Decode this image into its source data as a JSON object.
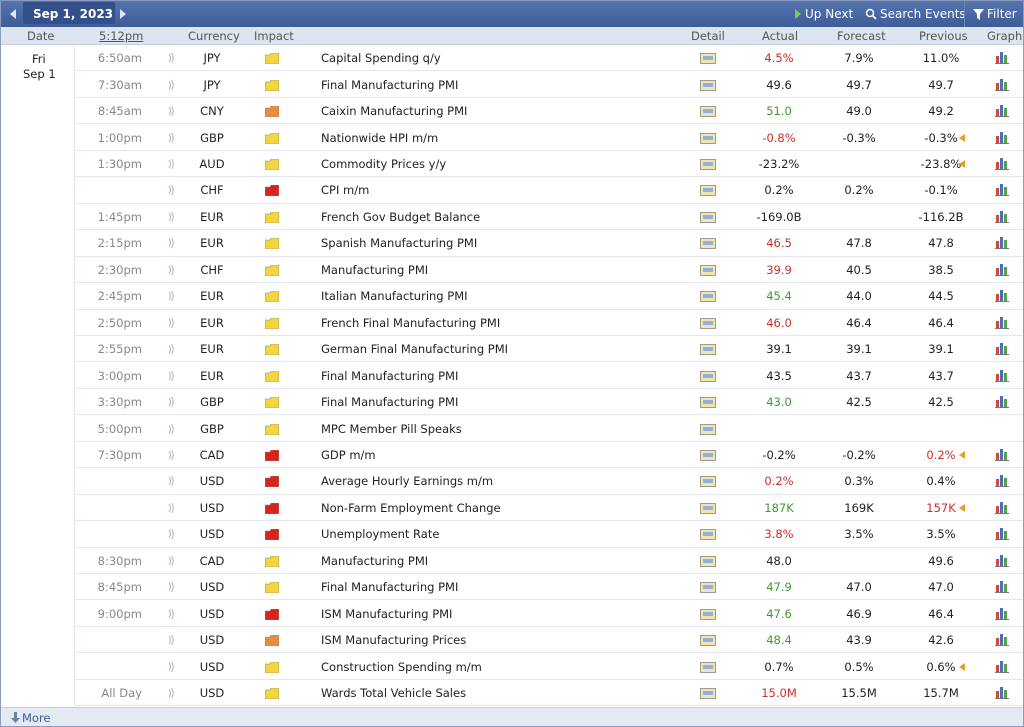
{
  "toolbar": {
    "date": "Sep 1, 2023",
    "up_next": "Up Next",
    "search": "Search Events",
    "filter": "Filter"
  },
  "header": {
    "date": "Date",
    "time": "5:12pm",
    "currency": "Currency",
    "impact": "Impact",
    "detail": "Detail",
    "actual": "Actual",
    "forecast": "Forecast",
    "previous": "Previous",
    "graph": "Graph"
  },
  "day": {
    "weekday": "Fri",
    "date": "Sep 1"
  },
  "impact_colors": {
    "low": "#f4d53e",
    "medium": "#e98d3c",
    "high": "#d8251b"
  },
  "tone_colors": {
    "better": "#3f9a2c",
    "worse": "#c9302a"
  },
  "rows": [
    {
      "time": "6:50am",
      "currency": "JPY",
      "impact": "low",
      "event": "Capital Spending q/y",
      "actual": "4.5%",
      "actual_tone": "worse",
      "forecast": "7.9%",
      "previous": "11.0%",
      "graph": true
    },
    {
      "time": "7:30am",
      "currency": "JPY",
      "impact": "low",
      "event": "Final Manufacturing PMI",
      "actual": "49.6",
      "forecast": "49.7",
      "previous": "49.7",
      "graph": true
    },
    {
      "time": "8:45am",
      "currency": "CNY",
      "impact": "medium",
      "event": "Caixin Manufacturing PMI",
      "actual": "51.0",
      "actual_tone": "better",
      "forecast": "49.0",
      "previous": "49.2",
      "graph": true
    },
    {
      "time": "1:00pm",
      "currency": "GBP",
      "impact": "low",
      "event": "Nationwide HPI m/m",
      "actual": "-0.8%",
      "actual_tone": "worse",
      "forecast": "-0.3%",
      "previous": "-0.3%",
      "revised": true,
      "graph": true
    },
    {
      "time": "1:30pm",
      "currency": "AUD",
      "impact": "low",
      "event": "Commodity Prices y/y",
      "actual": "-23.2%",
      "forecast": null,
      "previous": "-23.8%",
      "revised": true,
      "graph": true
    },
    {
      "time": null,
      "currency": "CHF",
      "impact": "high",
      "event": "CPI m/m",
      "actual": "0.2%",
      "forecast": "0.2%",
      "previous": "-0.1%",
      "graph": true
    },
    {
      "time": "1:45pm",
      "currency": "EUR",
      "impact": "low",
      "event": "French Gov Budget Balance",
      "actual": "-169.0B",
      "forecast": null,
      "previous": "-116.2B",
      "graph": true
    },
    {
      "time": "2:15pm",
      "currency": "EUR",
      "impact": "low",
      "event": "Spanish Manufacturing PMI",
      "actual": "46.5",
      "actual_tone": "worse",
      "forecast": "47.8",
      "previous": "47.8",
      "graph": true
    },
    {
      "time": "2:30pm",
      "currency": "CHF",
      "impact": "low",
      "event": "Manufacturing PMI",
      "actual": "39.9",
      "actual_tone": "worse",
      "forecast": "40.5",
      "previous": "38.5",
      "graph": true
    },
    {
      "time": "2:45pm",
      "currency": "EUR",
      "impact": "low",
      "event": "Italian Manufacturing PMI",
      "actual": "45.4",
      "actual_tone": "better",
      "forecast": "44.0",
      "previous": "44.5",
      "graph": true
    },
    {
      "time": "2:50pm",
      "currency": "EUR",
      "impact": "low",
      "event": "French Final Manufacturing PMI",
      "actual": "46.0",
      "actual_tone": "worse",
      "forecast": "46.4",
      "previous": "46.4",
      "graph": true
    },
    {
      "time": "2:55pm",
      "currency": "EUR",
      "impact": "low",
      "event": "German Final Manufacturing PMI",
      "actual": "39.1",
      "forecast": "39.1",
      "previous": "39.1",
      "graph": true
    },
    {
      "time": "3:00pm",
      "currency": "EUR",
      "impact": "low",
      "event": "Final Manufacturing PMI",
      "actual": "43.5",
      "forecast": "43.7",
      "previous": "43.7",
      "graph": true
    },
    {
      "time": "3:30pm",
      "currency": "GBP",
      "impact": "low",
      "event": "Final Manufacturing PMI",
      "actual": "43.0",
      "actual_tone": "better",
      "forecast": "42.5",
      "previous": "42.5",
      "graph": true
    },
    {
      "time": "5:00pm",
      "currency": "GBP",
      "impact": "low",
      "event": "MPC Member Pill Speaks",
      "actual": null,
      "forecast": null,
      "previous": null,
      "graph": false
    },
    {
      "time": "7:30pm",
      "currency": "CAD",
      "impact": "high",
      "event": "GDP m/m",
      "actual": "-0.2%",
      "forecast": "-0.2%",
      "previous": "0.2%",
      "previous_tone": "worse",
      "revised": true,
      "graph": true
    },
    {
      "time": null,
      "currency": "USD",
      "impact": "high",
      "event": "Average Hourly Earnings m/m",
      "actual": "0.2%",
      "actual_tone": "worse",
      "forecast": "0.3%",
      "previous": "0.4%",
      "graph": true
    },
    {
      "time": null,
      "currency": "USD",
      "impact": "high",
      "event": "Non-Farm Employment Change",
      "actual": "187K",
      "actual_tone": "better",
      "forecast": "169K",
      "previous": "157K",
      "previous_tone": "worse",
      "revised": true,
      "graph": true
    },
    {
      "time": null,
      "currency": "USD",
      "impact": "high",
      "event": "Unemployment Rate",
      "actual": "3.8%",
      "actual_tone": "worse",
      "forecast": "3.5%",
      "previous": "3.5%",
      "graph": true
    },
    {
      "time": "8:30pm",
      "currency": "CAD",
      "impact": "low",
      "event": "Manufacturing PMI",
      "actual": "48.0",
      "forecast": null,
      "previous": "49.6",
      "graph": true
    },
    {
      "time": "8:45pm",
      "currency": "USD",
      "impact": "low",
      "event": "Final Manufacturing PMI",
      "actual": "47.9",
      "actual_tone": "better",
      "forecast": "47.0",
      "previous": "47.0",
      "graph": true
    },
    {
      "time": "9:00pm",
      "currency": "USD",
      "impact": "high",
      "event": "ISM Manufacturing PMI",
      "actual": "47.6",
      "actual_tone": "better",
      "forecast": "46.9",
      "previous": "46.4",
      "graph": true
    },
    {
      "time": null,
      "currency": "USD",
      "impact": "medium",
      "event": "ISM Manufacturing Prices",
      "actual": "48.4",
      "actual_tone": "better",
      "forecast": "43.9",
      "previous": "42.6",
      "graph": true
    },
    {
      "time": null,
      "currency": "USD",
      "impact": "low",
      "event": "Construction Spending m/m",
      "actual": "0.7%",
      "forecast": "0.5%",
      "previous": "0.6%",
      "revised": true,
      "graph": true
    },
    {
      "time": "All Day",
      "currency": "USD",
      "impact": "low",
      "event": "Wards Total Vehicle Sales",
      "actual": "15.0M",
      "actual_tone": "worse",
      "forecast": "15.5M",
      "previous": "15.7M",
      "graph": true
    }
  ],
  "footer": {
    "more": "More"
  }
}
